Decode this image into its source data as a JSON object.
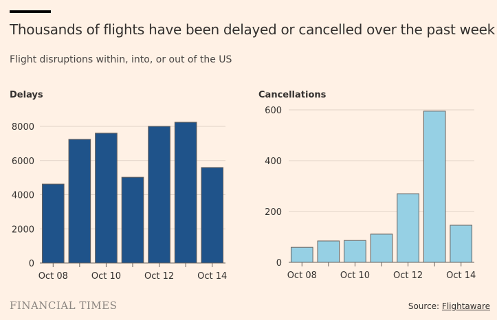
{
  "header": {
    "title": "Thousands of flights have been delayed or cancelled over the past week",
    "subtitle": "Flight disruptions within, into, or out of the US"
  },
  "footer": {
    "logo": "FINANCIAL TIMES",
    "source_prefix": "Source: ",
    "source_link": "Flightaware"
  },
  "chart_data": [
    {
      "type": "bar",
      "title": "Delays",
      "categories": [
        "Oct 08",
        "Oct 09",
        "Oct 10",
        "Oct 11",
        "Oct 12",
        "Oct 13",
        "Oct 14"
      ],
      "values": [
        4620,
        7240,
        7600,
        5020,
        8000,
        8240,
        5590
      ],
      "ylim": [
        0,
        8000
      ],
      "yticks": [
        0,
        2000,
        4000,
        6000,
        8000
      ],
      "xticklabels": [
        "Oct 08",
        "Oct 10",
        "Oct 12",
        "Oct 14"
      ],
      "color": "#1f538a",
      "grid": true
    },
    {
      "type": "bar",
      "title": "Cancellations",
      "categories": [
        "Oct 08",
        "Oct 09",
        "Oct 10",
        "Oct 11",
        "Oct 12",
        "Oct 13",
        "Oct 14"
      ],
      "values": [
        59,
        84,
        86,
        111,
        270,
        595,
        146
      ],
      "ylim": [
        0,
        600
      ],
      "yticks": [
        0,
        200,
        400,
        600
      ],
      "xticklabels": [
        "Oct 08",
        "Oct 10",
        "Oct 12",
        "Oct 14"
      ],
      "color": "#96d0e4",
      "grid": true
    }
  ]
}
